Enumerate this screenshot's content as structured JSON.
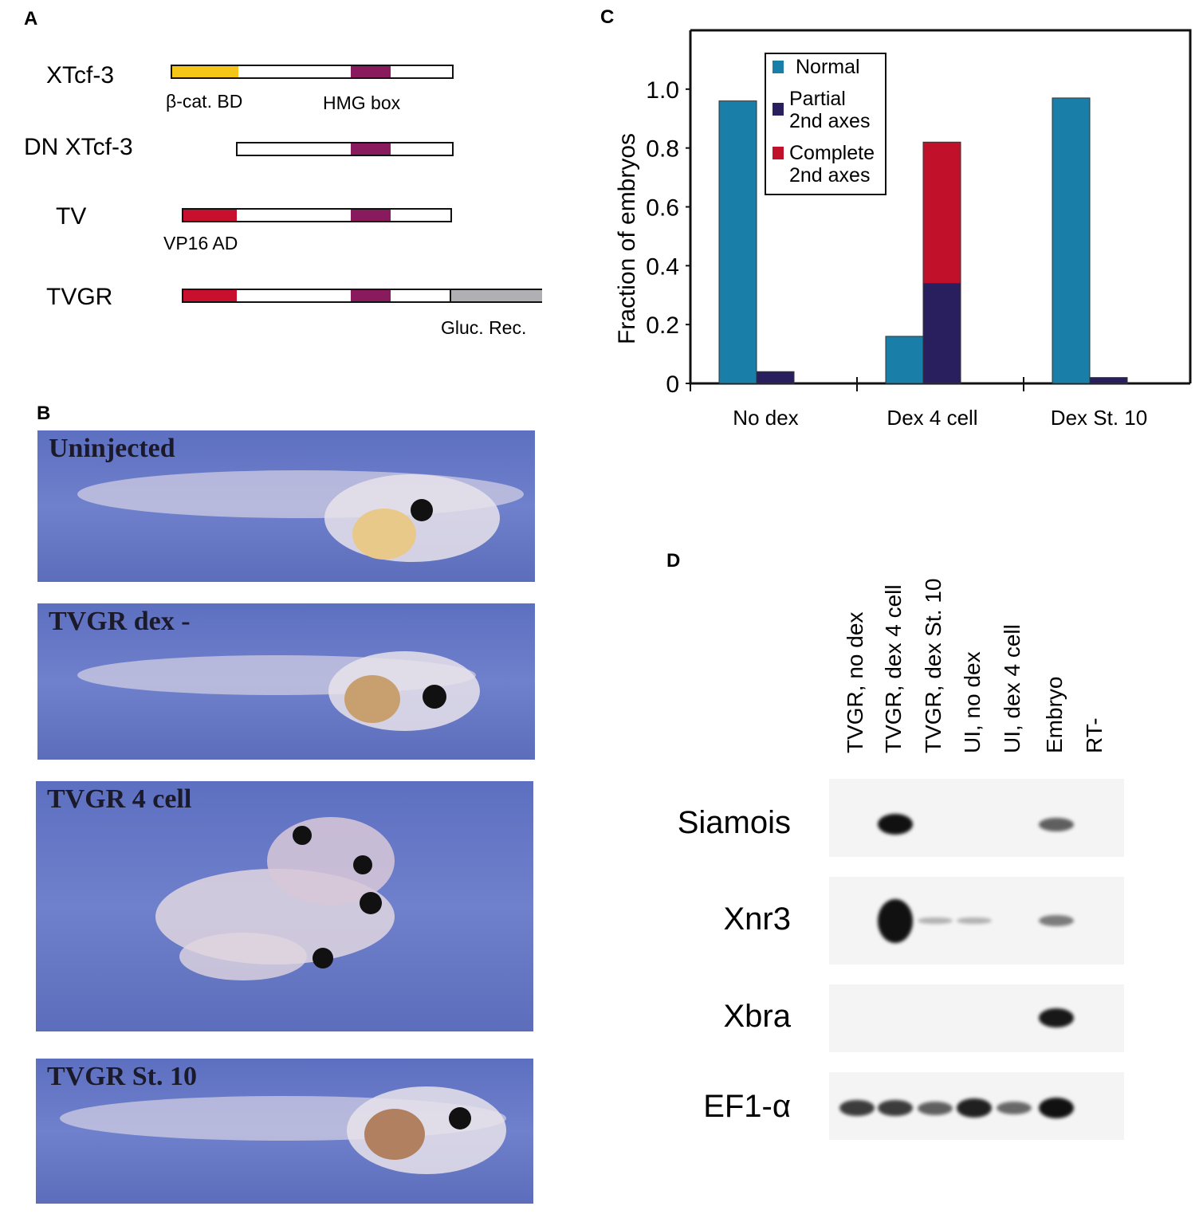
{
  "panels": {
    "a": "A",
    "b": "B",
    "c": "C",
    "d": "D"
  },
  "panel_a": {
    "constructs": [
      {
        "name": "XTcf-3",
        "labels": [
          "β-cat. BD",
          "HMG box"
        ]
      },
      {
        "name": "DN XTcf-3"
      },
      {
        "name": "TV",
        "labels": [
          "VP16 AD"
        ]
      },
      {
        "name": "TVGR",
        "labels": [
          "Gluc. Rec."
        ]
      }
    ],
    "colors": {
      "beta_cat_bd": "#f5c518",
      "hmg_box": "#8a1a5e",
      "vp16_ad": "#c8102e",
      "gluc_rec": "#b0b0b4"
    }
  },
  "panel_b": {
    "photos": [
      {
        "title": "Uninjected"
      },
      {
        "title": "TVGR dex -"
      },
      {
        "title": "TVGR 4 cell"
      },
      {
        "title": "TVGR St. 10"
      }
    ]
  },
  "chart_data": {
    "type": "bar",
    "ylabel": "Fraction of embryos",
    "xlabel": "",
    "ylim": [
      0,
      1.2
    ],
    "yticks": [
      "0",
      "0.2",
      "0.4",
      "0.6",
      "0.8",
      "1.0"
    ],
    "categories": [
      "No dex",
      "Dex 4 cell",
      "Dex St. 10"
    ],
    "legend_position": "top-left",
    "grid": false,
    "series": [
      {
        "name": "Normal",
        "color": "#1a7fa8",
        "values": [
          0.96,
          0.16,
          0.97
        ]
      },
      {
        "name": "Partial 2nd axes",
        "color": "#2a1f5e",
        "values": [
          0.04,
          0.34,
          0.02
        ]
      },
      {
        "name": "Complete 2nd axes",
        "color": "#c0102a",
        "values": [
          0,
          0.48,
          0
        ],
        "stacked_on": "Partial 2nd axes"
      }
    ],
    "legend_labels": [
      [
        "Normal"
      ],
      [
        "Partial",
        "2nd axes"
      ],
      [
        "Complete",
        "2nd axes"
      ]
    ]
  },
  "panel_d": {
    "lanes": [
      "TVGR, no dex",
      "TVGR, dex 4 cell",
      "TVGR, dex St. 10",
      "UI, no dex",
      "UI, dex 4 cell",
      "Embryo",
      "RT-"
    ],
    "genes": [
      {
        "name": "Siamois",
        "bands": [
          0,
          1.0,
          0,
          0,
          0,
          0.5,
          0
        ]
      },
      {
        "name": "Xnr3",
        "bands": [
          0,
          1.0,
          0.05,
          0.05,
          0,
          0.35,
          0
        ]
      },
      {
        "name": "Xbra",
        "bands": [
          0,
          0,
          0,
          0,
          0,
          0.9,
          0
        ]
      },
      {
        "name": "EF1-α",
        "bands": [
          0.7,
          0.7,
          0.5,
          0.85,
          0.45,
          1.0,
          0
        ]
      }
    ]
  }
}
